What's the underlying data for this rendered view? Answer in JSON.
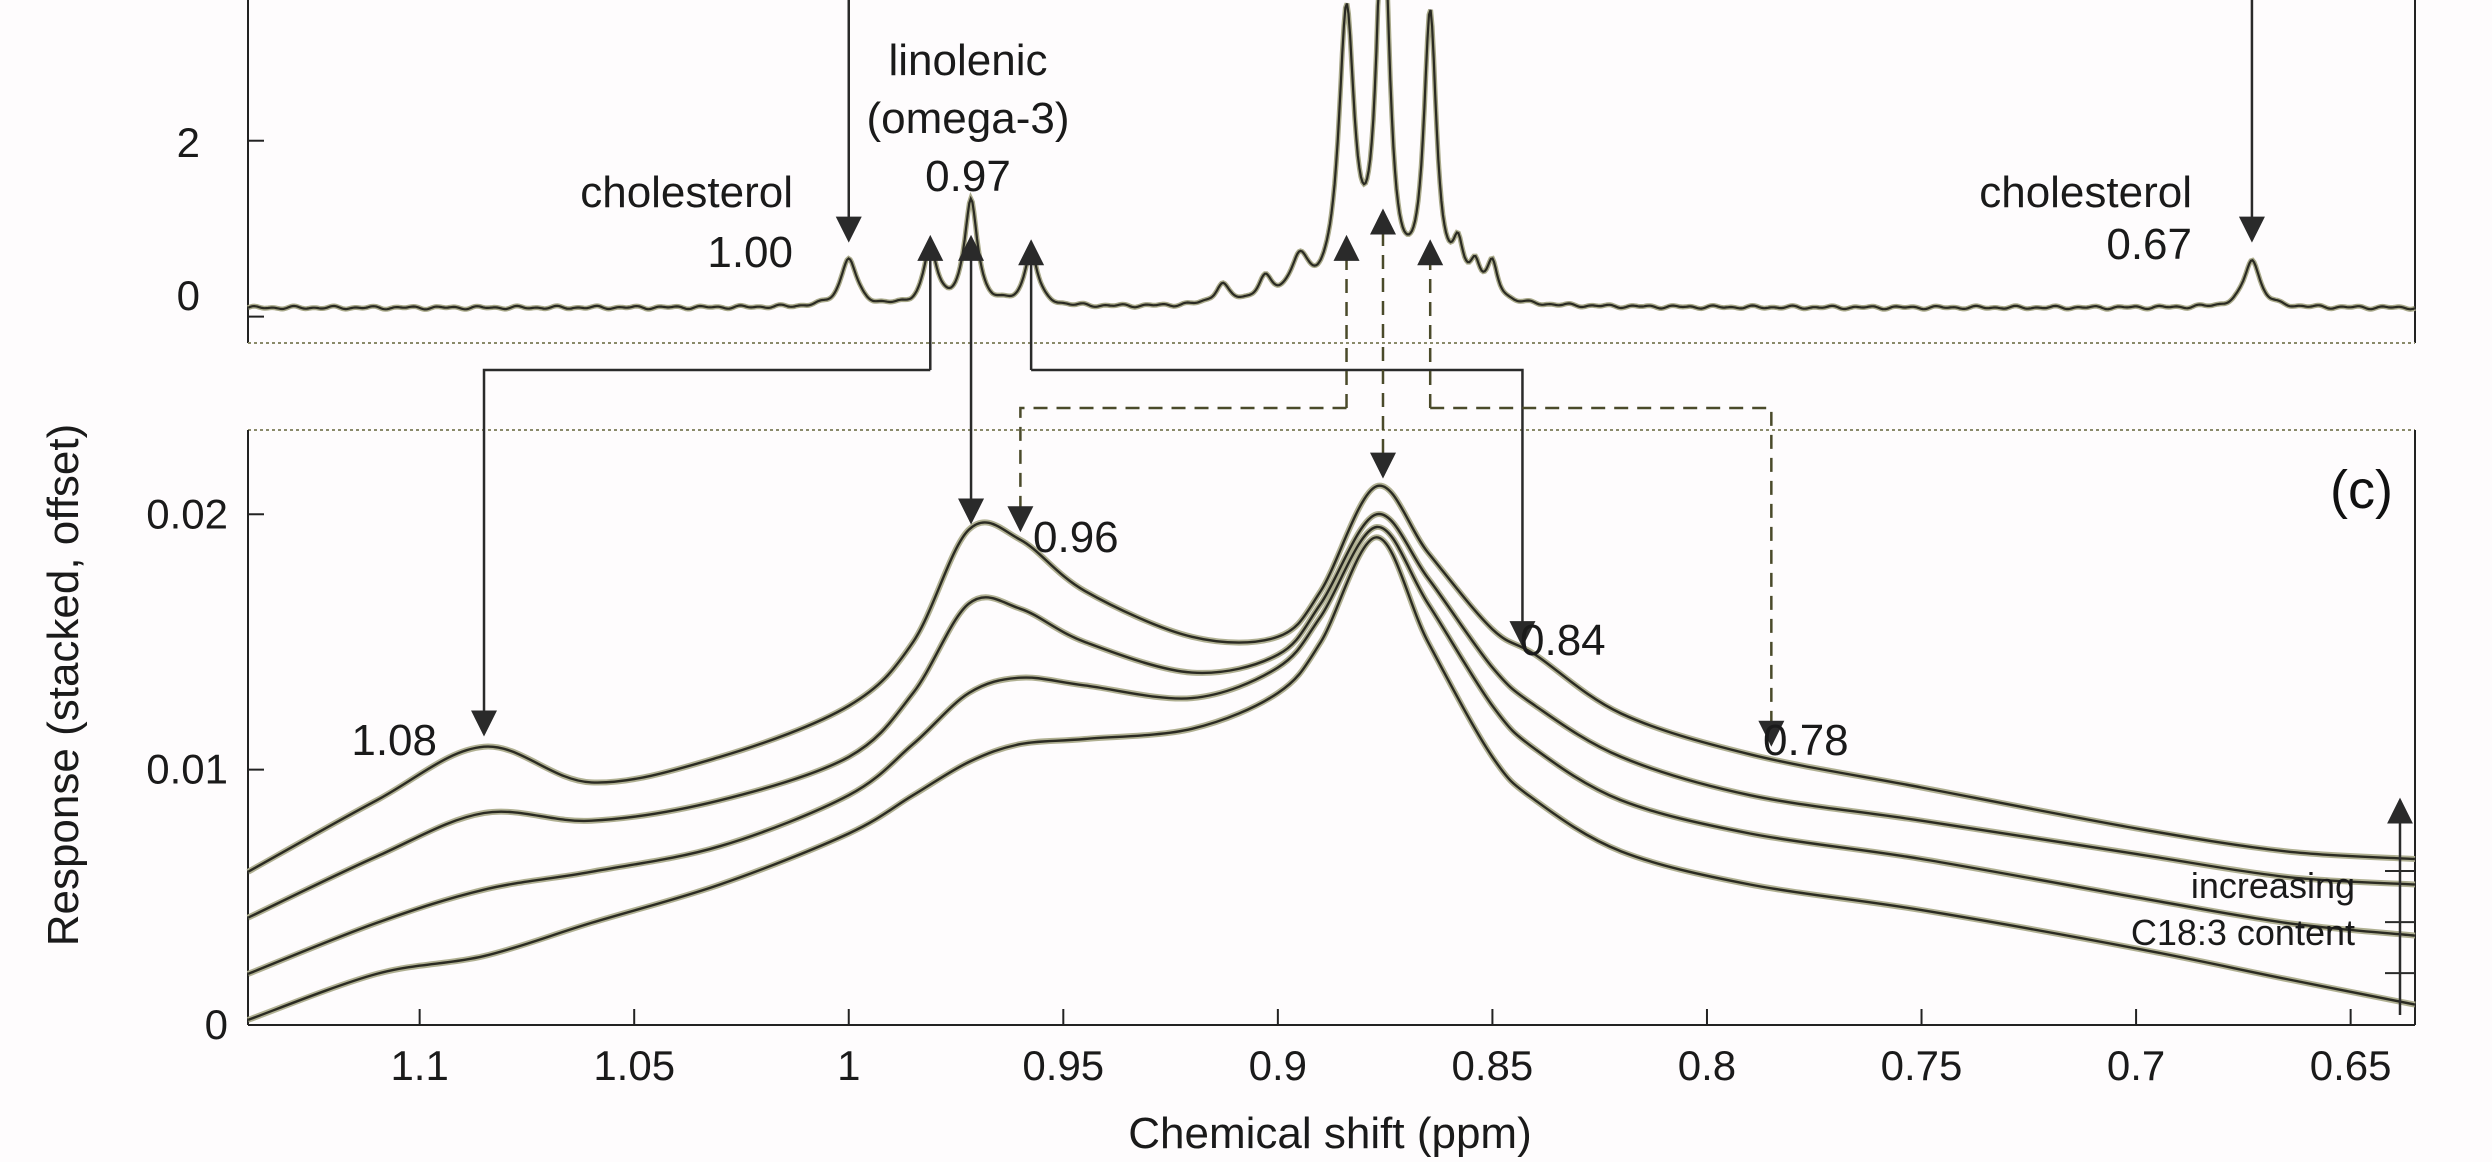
{
  "chart_data": [
    {
      "type": "line",
      "panel": "top",
      "description_tokens": [],
      "xlim": [
        1.14,
        0.635
      ],
      "ylim": [
        -0.3,
        3.6
      ],
      "ytick_values": [
        0,
        2
      ],
      "ytick_labels": [
        "0",
        "2"
      ],
      "series": [
        {
          "peaks": [
            {
              "x": 1.0,
              "h": 0.55,
              "w": 0.0022
            },
            {
              "x": 0.981,
              "h": 0.65,
              "w": 0.0018
            },
            {
              "x": 0.9715,
              "h": 1.2,
              "w": 0.0018
            },
            {
              "x": 0.9575,
              "h": 0.62,
              "w": 0.0018
            },
            {
              "x": 0.913,
              "h": 0.22,
              "w": 0.002
            },
            {
              "x": 0.903,
              "h": 0.25,
              "w": 0.002
            },
            {
              "x": 0.895,
              "h": 0.45,
              "w": 0.0025
            },
            {
              "x": 0.884,
              "h": 3.2,
              "w": 0.0022
            },
            {
              "x": 0.8755,
              "h": 4.4,
              "w": 0.0018
            },
            {
              "x": 0.8645,
              "h": 3.2,
              "w": 0.0018
            },
            {
              "x": 0.858,
              "h": 0.5,
              "w": 0.0015
            },
            {
              "x": 0.854,
              "h": 0.35,
              "w": 0.0015
            },
            {
              "x": 0.85,
              "h": 0.4,
              "w": 0.0015
            },
            {
              "x": 0.673,
              "h": 0.55,
              "w": 0.0022
            }
          ],
          "baseline": 0.1
        }
      ],
      "annotations": [
        {
          "id": "chol-left",
          "lines": [
            "cholesterol",
            "1.00"
          ],
          "x": 1.0
        },
        {
          "id": "linolenic",
          "lines": [
            "linolenic",
            "(omega-3)",
            "0.97"
          ],
          "x": 0.9715
        },
        {
          "id": "chol-right",
          "lines": [
            "cholesterol",
            "0.67"
          ],
          "x": 0.673
        }
      ]
    },
    {
      "type": "line",
      "panel": "bottom",
      "panel_label": "(c)",
      "xlabel": "Chemical shift (ppm)",
      "ylabel": "Response (stacked, offset)",
      "xlim": [
        1.14,
        0.635
      ],
      "ylim": [
        0,
        0.0233
      ],
      "xtick_values": [
        1.1,
        1.05,
        1.0,
        0.95,
        0.9,
        0.85,
        0.8,
        0.75,
        0.7,
        0.65
      ],
      "xtick_labels": [
        "1.1",
        "1.05",
        "1",
        "0.95",
        "0.9",
        "0.85",
        "0.8",
        "0.75",
        "0.7",
        "0.65"
      ],
      "ytick_values": [
        0,
        0.01,
        0.02
      ],
      "ytick_labels": [
        "0",
        "0.01",
        "0.02"
      ],
      "series": [
        {
          "points": [
            [
              1.14,
              0.006
            ],
            [
              1.11,
              0.0088
            ],
            [
              1.085,
              0.0109
            ],
            [
              1.06,
              0.0095
            ],
            [
              1.03,
              0.0105
            ],
            [
              1.0,
              0.0125
            ],
            [
              0.985,
              0.015
            ],
            [
              0.972,
              0.0194
            ],
            [
              0.96,
              0.019
            ],
            [
              0.945,
              0.017
            ],
            [
              0.92,
              0.0152
            ],
            [
              0.9,
              0.0152
            ],
            [
              0.89,
              0.017
            ],
            [
              0.877,
              0.0211
            ],
            [
              0.865,
              0.0185
            ],
            [
              0.85,
              0.0155
            ],
            [
              0.84,
              0.0145
            ],
            [
              0.82,
              0.0122
            ],
            [
              0.79,
              0.0106
            ],
            [
              0.75,
              0.0093
            ],
            [
              0.7,
              0.0077
            ],
            [
              0.665,
              0.0068
            ],
            [
              0.635,
              0.0065
            ]
          ]
        },
        {
          "points": [
            [
              1.14,
              0.0042
            ],
            [
              1.11,
              0.0066
            ],
            [
              1.085,
              0.0083
            ],
            [
              1.06,
              0.008
            ],
            [
              1.03,
              0.0088
            ],
            [
              1.0,
              0.0105
            ],
            [
              0.985,
              0.013
            ],
            [
              0.972,
              0.0165
            ],
            [
              0.96,
              0.0163
            ],
            [
              0.945,
              0.015
            ],
            [
              0.92,
              0.0138
            ],
            [
              0.9,
              0.0145
            ],
            [
              0.89,
              0.0165
            ],
            [
              0.877,
              0.02
            ],
            [
              0.865,
              0.0175
            ],
            [
              0.85,
              0.014
            ],
            [
              0.84,
              0.0125
            ],
            [
              0.82,
              0.0105
            ],
            [
              0.79,
              0.009
            ],
            [
              0.75,
              0.008
            ],
            [
              0.7,
              0.0067
            ],
            [
              0.665,
              0.0058
            ],
            [
              0.635,
              0.0055
            ]
          ]
        },
        {
          "points": [
            [
              1.14,
              0.002
            ],
            [
              1.11,
              0.004
            ],
            [
              1.085,
              0.0053
            ],
            [
              1.06,
              0.006
            ],
            [
              1.03,
              0.007
            ],
            [
              1.0,
              0.009
            ],
            [
              0.985,
              0.011
            ],
            [
              0.972,
              0.013
            ],
            [
              0.96,
              0.0136
            ],
            [
              0.945,
              0.0133
            ],
            [
              0.92,
              0.0128
            ],
            [
              0.9,
              0.014
            ],
            [
              0.89,
              0.016
            ],
            [
              0.877,
              0.0195
            ],
            [
              0.865,
              0.0165
            ],
            [
              0.85,
              0.0125
            ],
            [
              0.84,
              0.0108
            ],
            [
              0.82,
              0.0088
            ],
            [
              0.79,
              0.0075
            ],
            [
              0.75,
              0.0065
            ],
            [
              0.7,
              0.005
            ],
            [
              0.665,
              0.004
            ],
            [
              0.635,
              0.0035
            ]
          ]
        },
        {
          "points": [
            [
              1.14,
              0.0002
            ],
            [
              1.11,
              0.002
            ],
            [
              1.085,
              0.0027
            ],
            [
              1.06,
              0.004
            ],
            [
              1.03,
              0.0055
            ],
            [
              1.0,
              0.0075
            ],
            [
              0.985,
              0.009
            ],
            [
              0.972,
              0.0103
            ],
            [
              0.96,
              0.011
            ],
            [
              0.945,
              0.0112
            ],
            [
              0.92,
              0.0116
            ],
            [
              0.9,
              0.013
            ],
            [
              0.89,
              0.015
            ],
            [
              0.877,
              0.0191
            ],
            [
              0.865,
              0.015
            ],
            [
              0.85,
              0.0105
            ],
            [
              0.84,
              0.0088
            ],
            [
              0.82,
              0.0068
            ],
            [
              0.79,
              0.0055
            ],
            [
              0.75,
              0.0045
            ],
            [
              0.7,
              0.003
            ],
            [
              0.665,
              0.0018
            ],
            [
              0.635,
              0.0008
            ]
          ]
        }
      ],
      "annotations": [
        {
          "id": "p108",
          "text": "1.08",
          "x": 1.085
        },
        {
          "id": "p096",
          "text": "0.96",
          "x": 0.96
        },
        {
          "id": "p084",
          "text": "0.84",
          "x": 0.843
        },
        {
          "id": "p078",
          "text": "0.78",
          "x": 0.785
        }
      ],
      "trend_note": [
        "increasing",
        "C18:3 content"
      ]
    }
  ]
}
